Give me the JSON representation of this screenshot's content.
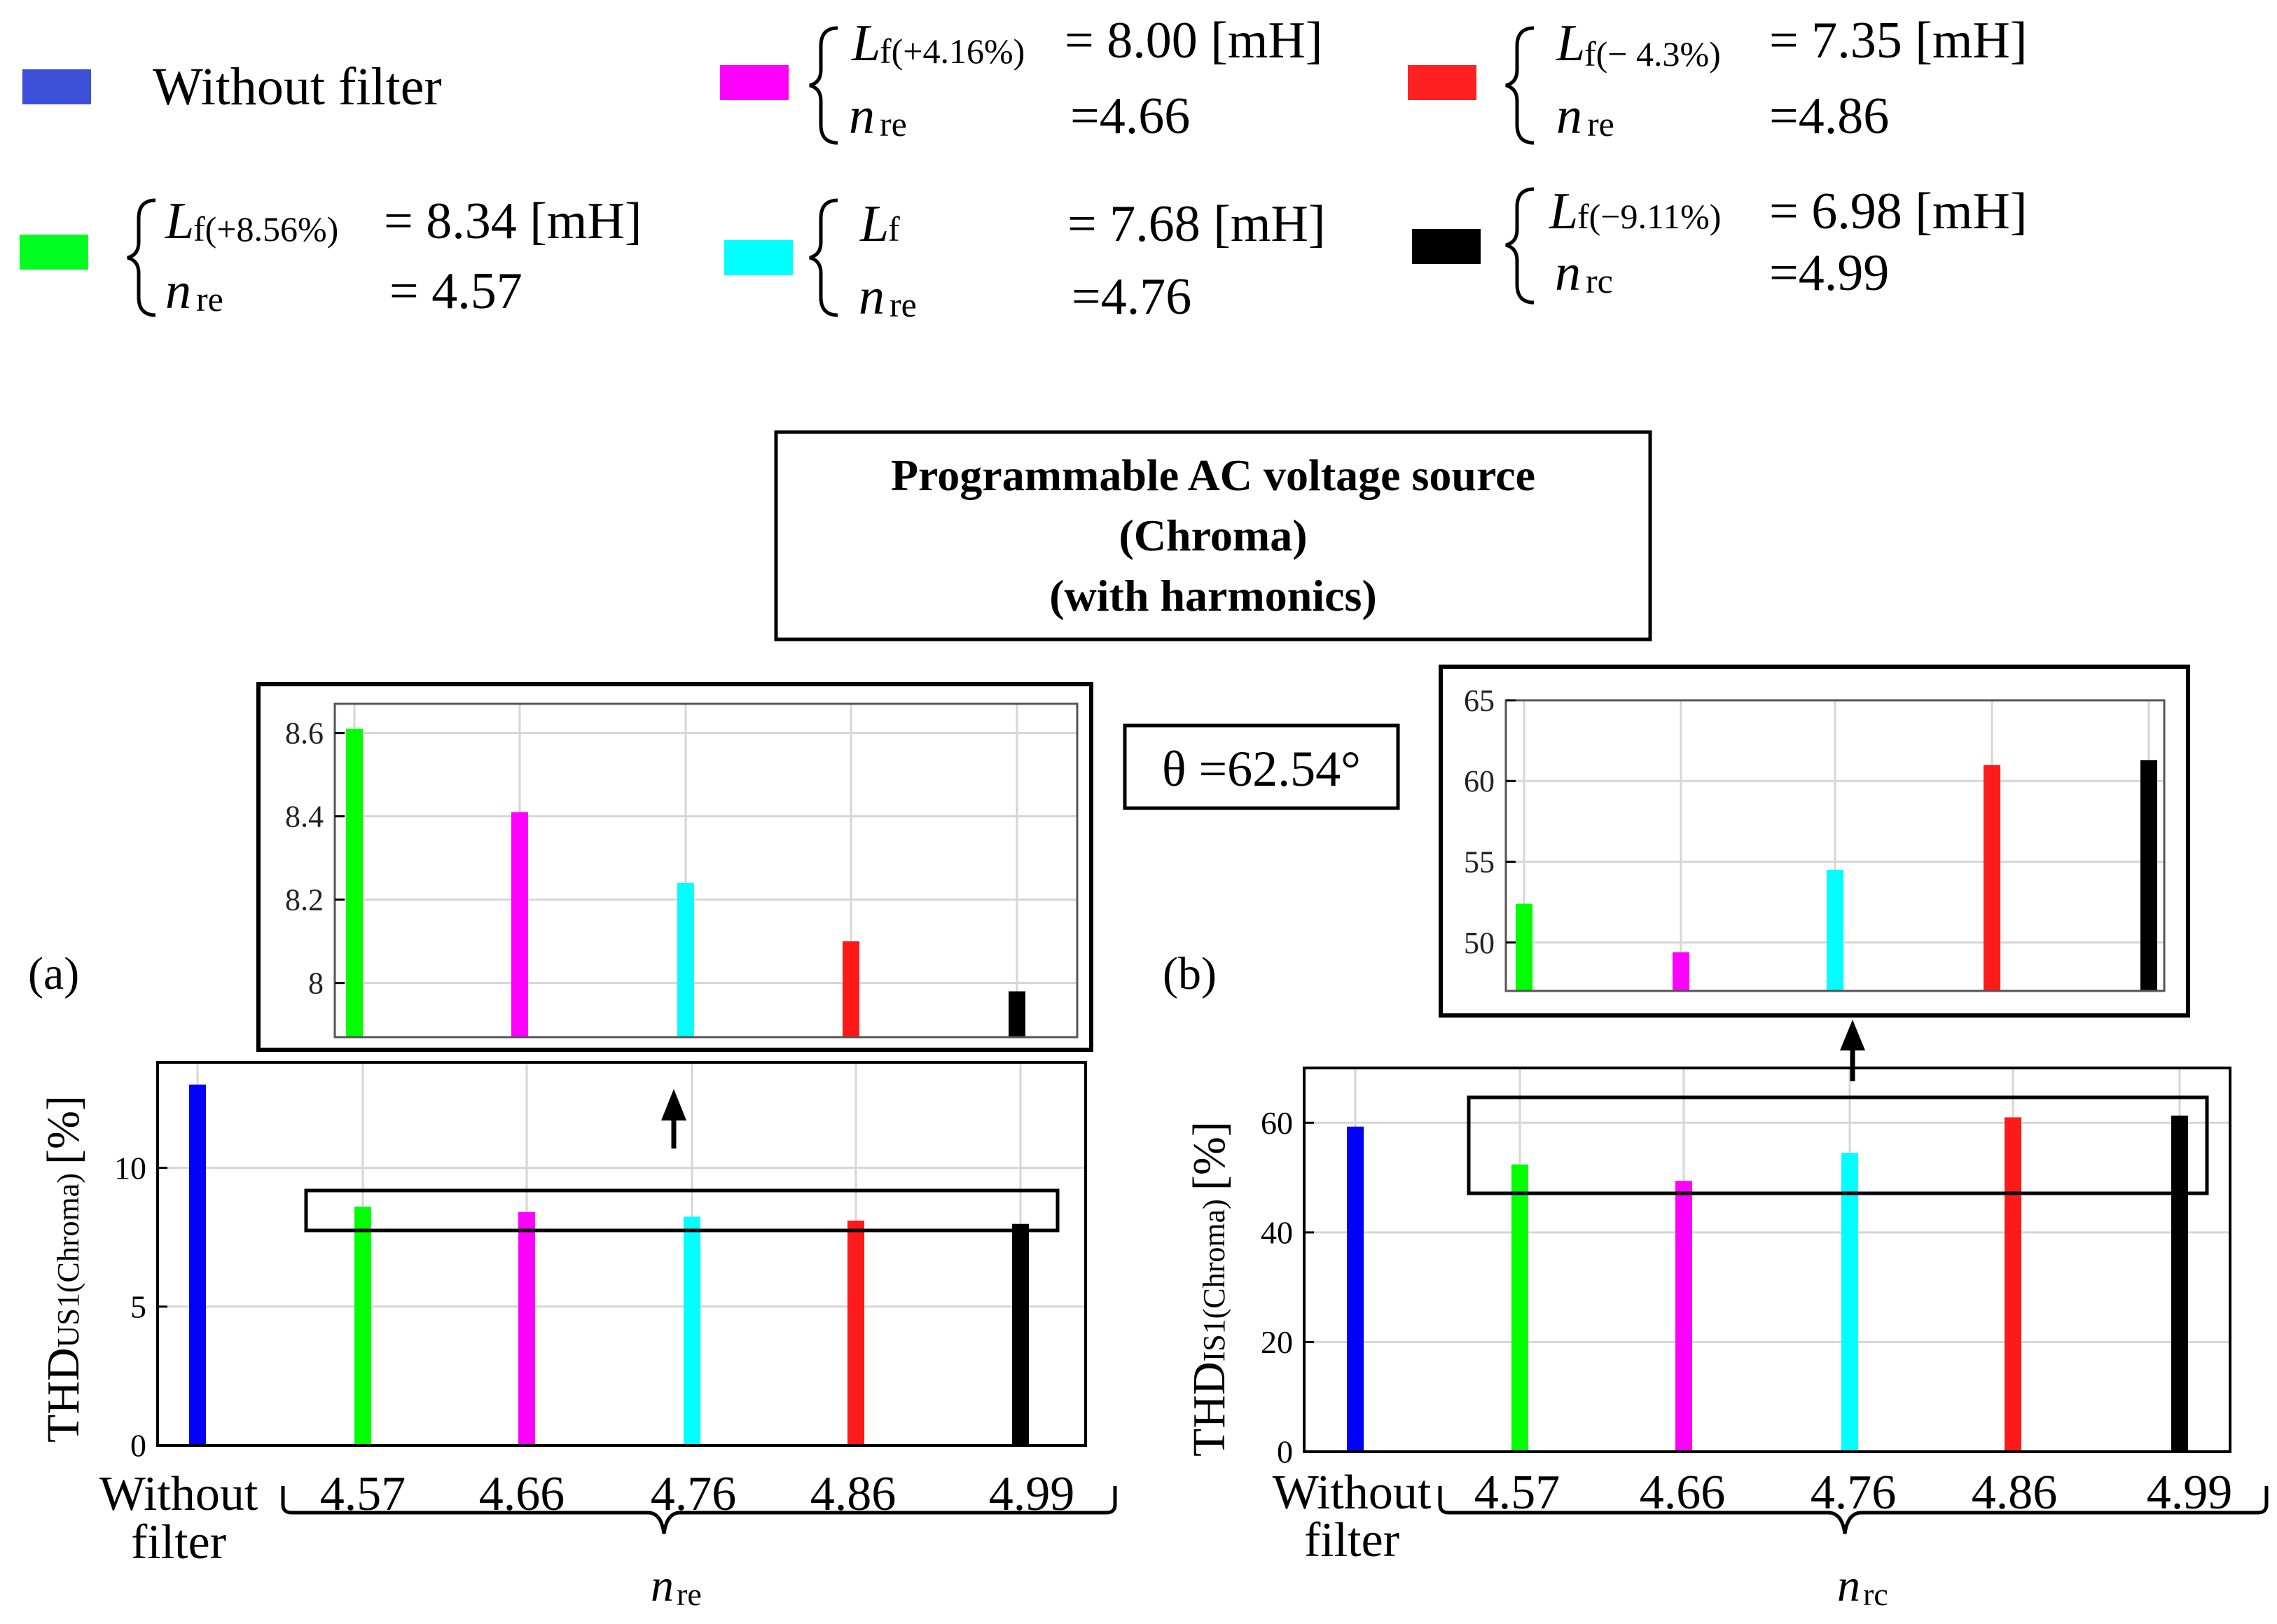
{
  "page": {
    "title_line1": "Programmable AC voltage source",
    "title_line2": "(Chroma)",
    "title_line3": "(with harmonics)",
    "theta_label": "θ =62.54°",
    "panel_a_label": "(a)",
    "panel_b_label": "(b)"
  },
  "legend": {
    "items": [
      {
        "color": "#3b4fd9",
        "text": "Without filter"
      },
      {
        "color": "#ff00ff",
        "l_sub": "f(+4.16%)",
        "l_val": "= 8.00 [mH]",
        "n_sub": "re",
        "n_val": "=4.66"
      },
      {
        "color": "#ff2121",
        "l_sub": "f(− 4.3%)",
        "l_val": "= 7.35 [mH]",
        "n_sub": "re",
        "n_val": "=4.86"
      },
      {
        "color": "#00ff21",
        "l_sub": "f(+8.56%)",
        "l_val": "= 8.34 [mH]",
        "n_sub": "re",
        "n_val": "= 4.57"
      },
      {
        "color": "#00ffff",
        "l_sub": "f",
        "l_val": "= 7.68 [mH]",
        "n_sub": "re",
        "n_val": "=4.76"
      },
      {
        "color": "#000000",
        "l_sub": "f(−9.11%)",
        "l_val": "= 6.98 [mH]",
        "n_sub": "rc",
        "n_val": "=4.99"
      }
    ]
  },
  "colors": [
    "#0000ff",
    "#00ff00",
    "#ff00ff",
    "#00ffff",
    "#ff1a1a",
    "#000000"
  ],
  "chart_data": [
    {
      "type": "bar",
      "name": "THD_US1 main",
      "ylabel_main": "THD",
      "ylabel_sub": "US1(Chroma)",
      "ylabel_unit": "[%]",
      "categories": [
        "Without filter",
        "4.57",
        "4.66",
        "4.76",
        "4.86",
        "4.99"
      ],
      "category_line1": [
        "Without",
        "4.57",
        "4.66",
        "4.76",
        "4.86",
        "4.99"
      ],
      "category_line2": [
        "filter",
        "",
        "",
        "",
        "",
        ""
      ],
      "values": [
        13.0,
        8.6,
        8.41,
        8.24,
        8.1,
        7.98
      ],
      "ylim": [
        0,
        13.8
      ],
      "yticks": [
        0,
        5,
        10
      ],
      "ytick_labels": [
        "0",
        "5",
        "10"
      ],
      "xlabel_main": "n",
      "xlabel_sub": "re",
      "grid": true
    },
    {
      "type": "bar",
      "name": "THD_US1 zoom",
      "values": [
        8.61,
        8.41,
        8.24,
        8.1,
        7.98
      ],
      "ylim": [
        7.87,
        8.67
      ],
      "yticks": [
        8.0,
        8.2,
        8.4,
        8.6
      ],
      "ytick_labels": [
        "8",
        "8.2",
        "8.4",
        "8.6"
      ],
      "grid": true
    },
    {
      "type": "bar",
      "name": "THD_IS1 main",
      "ylabel_main": "THD",
      "ylabel_sub": "IS1(Chroma)",
      "ylabel_unit": "[%]",
      "categories": [
        "Without filter",
        "4.57",
        "4.66",
        "4.76",
        "4.86",
        "4.99"
      ],
      "category_line1": [
        "Without",
        "4.57",
        "4.66",
        "4.76",
        "4.86",
        "4.99"
      ],
      "category_line2": [
        "filter",
        "",
        "",
        "",
        "",
        ""
      ],
      "values": [
        59.3,
        52.4,
        49.4,
        54.5,
        61.0,
        61.3
      ],
      "ylim": [
        0,
        70
      ],
      "yticks": [
        0,
        20,
        40,
        60
      ],
      "ytick_labels": [
        "0",
        "20",
        "40",
        "60"
      ],
      "xlabel_main": "n",
      "xlabel_sub": "rc",
      "grid": true
    },
    {
      "type": "bar",
      "name": "THD_IS1 zoom",
      "values": [
        52.4,
        49.4,
        54.5,
        61.0,
        61.3
      ],
      "ylim": [
        47,
        65
      ],
      "yticks": [
        50,
        55,
        60,
        65
      ],
      "ytick_labels": [
        "50",
        "55",
        "60",
        "65"
      ],
      "grid": true
    }
  ]
}
